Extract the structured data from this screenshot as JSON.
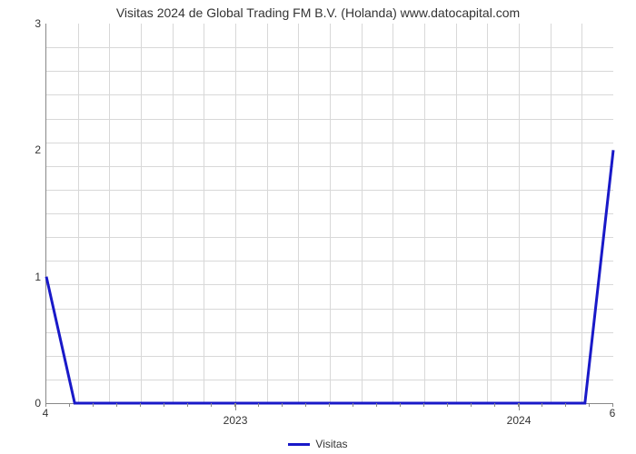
{
  "chart": {
    "type": "line",
    "title": "Visitas 2024 de Global Trading FM B.V. (Holanda) www.datocapital.com",
    "title_fontsize": 14,
    "background_color": "#ffffff",
    "grid_color": "#d8d8d8",
    "axis_color": "#888888",
    "series": [
      {
        "name": "Visitas",
        "color": "#1919c8",
        "line_width": 3,
        "x": [
          4.0,
          4.1,
          5.9,
          6.0
        ],
        "y": [
          1.0,
          0.0,
          0.0,
          2.0
        ]
      }
    ],
    "xlim": [
      4,
      6
    ],
    "ylim": [
      0,
      3
    ],
    "y_ticks": [
      0,
      1,
      2,
      3
    ],
    "x_tick_labels_minor": [
      {
        "pos": 4.0,
        "label": "4"
      },
      {
        "pos": 6.0,
        "label": "6"
      }
    ],
    "x_tick_labels_major": [
      {
        "pos": 4.67,
        "label": "2023"
      },
      {
        "pos": 5.67,
        "label": "2024"
      }
    ],
    "x_minor_tick_step": 0.0833,
    "grid_v_count": 17,
    "grid_h_count": 15,
    "legend_label": "Visitas"
  }
}
